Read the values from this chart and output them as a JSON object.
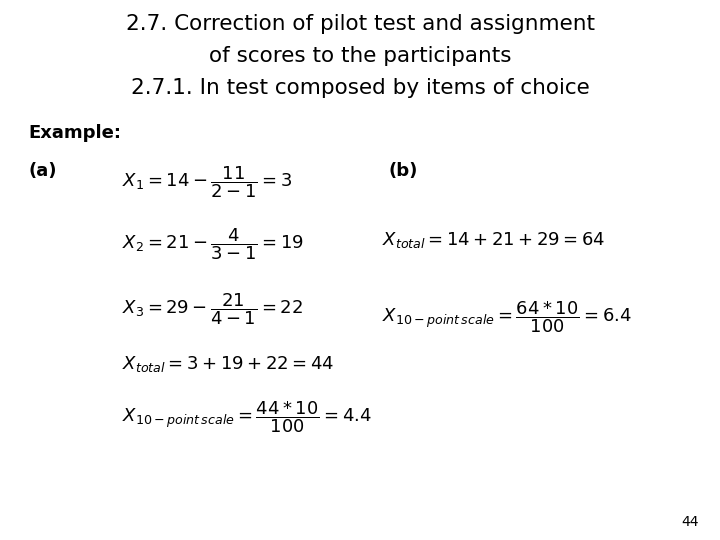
{
  "title_line1": "2.7. Correction of pilot test and assignment",
  "title_line2": "of scores to the participants",
  "subtitle": "2.7.1. In test composed by items of choice",
  "example_label": "Example:",
  "label_a": "(a)",
  "label_b": "(b)",
  "eq_a1": "$X_{1} = 14 - \\dfrac{11}{2-1} = 3$",
  "eq_a2": "$X_{2} = 21 - \\dfrac{4}{3-1} = 19$",
  "eq_a3": "$X_{3} = 29 - \\dfrac{21}{4-1} = 22$",
  "eq_a4": "$X_{total} = 3 + 19 + 22 = 44$",
  "eq_a5": "$X_{10-point\\,scale} = \\dfrac{44*10}{100} = 4.4$",
  "eq_b1": "$X_{total} = 14 + 21 + 29 = 64$",
  "eq_b2": "$X_{10-point\\,scale} = \\dfrac{64*10}{100} = 6.4$",
  "page_number": "44",
  "bg_color": "#ffffff",
  "text_color": "#000000",
  "title_fontsize": 15.5,
  "subtitle_fontsize": 15.5,
  "body_fontsize": 13,
  "eq_fontsize": 13,
  "page_fontsize": 10
}
